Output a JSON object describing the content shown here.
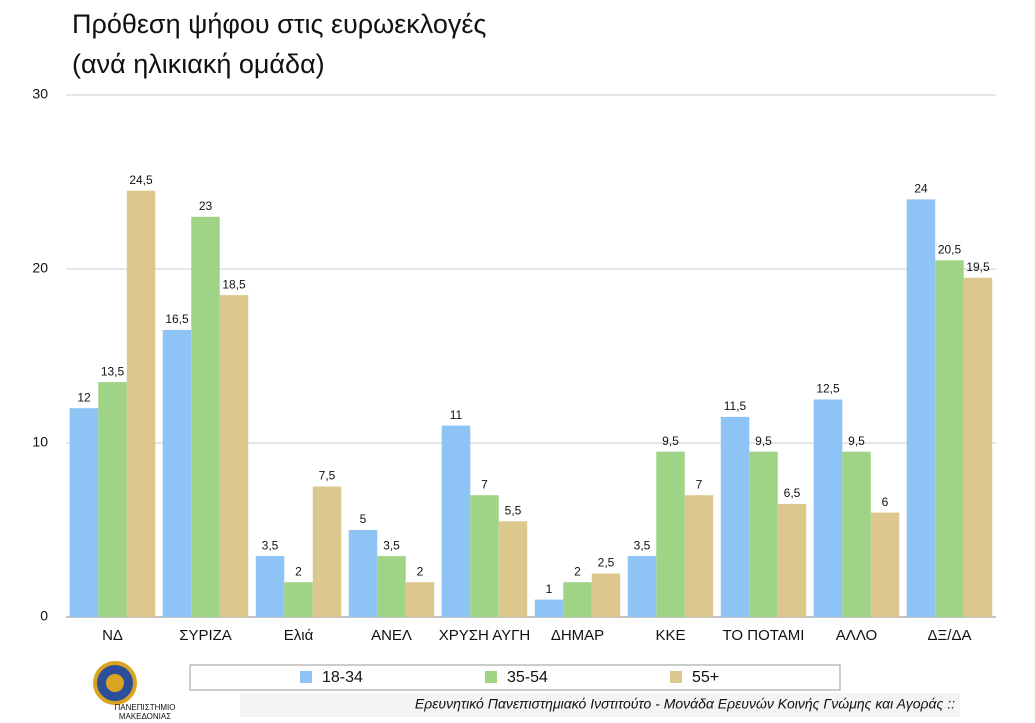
{
  "chart_data": {
    "type": "bar",
    "title": "Πρόθεση ψήφου στις ευρωεκλογές",
    "subtitle": "(ανά ηλικιακή ομάδα)",
    "categories": [
      "ΝΔ",
      "ΣΥΡΙΖΑ",
      "Ελιά",
      "ΑΝΕΛ",
      "ΧΡΥΣΗ ΑΥΓΗ",
      "ΔΗΜΑΡ",
      "ΚΚΕ",
      "ΤΟ ΠΟΤΑΜΙ",
      "ΑΛΛΟ",
      "ΔΞ/ΔΑ"
    ],
    "series": [
      {
        "name": "18-34",
        "color": "#8ec3f5",
        "values": [
          12,
          16.5,
          3.5,
          5,
          11,
          1,
          3.5,
          11.5,
          12.5,
          24
        ],
        "value_labels": [
          "12",
          "16,5",
          "3,5",
          "5",
          "11",
          "1",
          "3,5",
          "11,5",
          "12,5",
          "24"
        ]
      },
      {
        "name": "35-54",
        "color": "#9fd487",
        "values": [
          13.5,
          23,
          2,
          3.5,
          7,
          2,
          9.5,
          9.5,
          9.5,
          20.5
        ],
        "value_labels": [
          "13,5",
          "23",
          "2",
          "3,5",
          "7",
          "2",
          "9,5",
          "9,5",
          "9,5",
          "20,5"
        ]
      },
      {
        "name": "55+",
        "color": "#dcc78c",
        "values": [
          24.5,
          18.5,
          7.5,
          2,
          5.5,
          2.5,
          7,
          6.5,
          6,
          19.5
        ],
        "value_labels": [
          "24,5",
          "18,5",
          "7,5",
          "2",
          "5,5",
          "2,5",
          "7",
          "6,5",
          "6",
          "19,5"
        ]
      }
    ],
    "ylim": [
      0,
      30
    ],
    "yticks": [
      0,
      10,
      20,
      30
    ],
    "grid": true,
    "legend": "bottom"
  },
  "footer": {
    "source": "Ερευνητικό Πανεπιστημιακό Ινστιτούτο - Μονάδα Ερευνών Κοινής Γνώμης και Αγοράς ::",
    "logo_lines": [
      "ΠΑΝΕΠΙΣΤΗΜΙΟ",
      "ΜΑΚΕΔΟΝΙΑΣ"
    ]
  }
}
